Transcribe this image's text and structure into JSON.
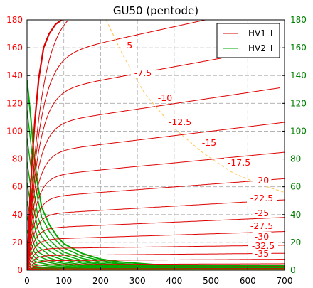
{
  "chart_data": {
    "type": "line",
    "title": "GU50 (pentode)",
    "xlim": [
      0,
      700
    ],
    "ylim_left": [
      0,
      180
    ],
    "ylim_right": [
      0,
      180
    ],
    "x_ticks": [
      0,
      100,
      200,
      300,
      400,
      500,
      600,
      700
    ],
    "y_ticks_left": [
      0,
      20,
      40,
      60,
      80,
      100,
      120,
      140,
      160,
      180
    ],
    "y_ticks_right": [
      0,
      20,
      40,
      60,
      80,
      100,
      120,
      140,
      160,
      180
    ],
    "grid": true,
    "legend_position": "top-right",
    "legend": [
      {
        "name": "HV1_I",
        "color": "#dd0000"
      },
      {
        "name": "HV2_I",
        "color": "#00aa00"
      }
    ],
    "colors": {
      "left_axis": "#ff0000",
      "right_axis": "#008000",
      "hv1": "#dd0000",
      "hv2": "#00aa00",
      "load_line": "#ffcc66",
      "grid": "#aaaaaa"
    },
    "hv1_curves": [
      {
        "label": "-5",
        "plateau": 180,
        "x_end": 450
      },
      {
        "label": "-7.5",
        "plateau": 152,
        "x_end": 500
      },
      {
        "label": "-10",
        "plateau": 127,
        "x_end": 580
      },
      {
        "label": "-12.5",
        "plateau": 104,
        "x_end": 690
      },
      {
        "label": "-15",
        "plateau": 84,
        "x_end": 700
      },
      {
        "label": "-17.5",
        "plateau": 67,
        "x_end": 700
      },
      {
        "label": "-20",
        "plateau": 52,
        "x_end": 700
      },
      {
        "label": "-22.5",
        "plateau": 40,
        "x_end": 700
      },
      {
        "label": "-25",
        "plateau": 30,
        "x_end": 700
      },
      {
        "label": "-27.5",
        "plateau": 22,
        "x_end": 700
      },
      {
        "label": "-30",
        "plateau": 15.5,
        "x_end": 700
      },
      {
        "label": "-32.5",
        "plateau": 10.5,
        "x_end": 700
      },
      {
        "label": "-35",
        "plateau": 6.8,
        "x_end": 700
      },
      {
        "label": "",
        "plateau": 4,
        "x_end": 700
      },
      {
        "label": "",
        "plateau": 2.2,
        "x_end": 700
      },
      {
        "label": "",
        "plateau": 1,
        "x_end": 700
      },
      {
        "label": "",
        "plateau": 0.3,
        "x_end": 700
      }
    ],
    "hv1_bold_curve": {
      "x": [
        0,
        3,
        8,
        14,
        22,
        32,
        45,
        60,
        78,
        95
      ],
      "y": [
        0,
        20,
        50,
        80,
        110,
        138,
        160,
        170,
        177,
        180
      ]
    },
    "hv2_curves": [
      {
        "start": 137,
        "knee_x": 45,
        "knee_y": 45,
        "x": [
          0,
          10,
          20,
          30,
          40,
          60,
          80,
          100,
          150,
          200,
          250,
          300,
          350
        ],
        "y": [
          137,
          110,
          80,
          60,
          45,
          33,
          25,
          19,
          12,
          8,
          6,
          5,
          4
        ]
      },
      {
        "start": 115,
        "knee_x": 40,
        "knee_y": 38,
        "x": [
          0,
          10,
          20,
          30,
          40,
          60,
          80,
          100,
          150,
          200,
          250,
          300,
          350
        ],
        "y": [
          115,
          92,
          67,
          50,
          38,
          28,
          21,
          16,
          10,
          7,
          5,
          4,
          3.4
        ]
      },
      {
        "start": 95,
        "knee_x": 35,
        "knee_y": 30,
        "x": [
          0,
          10,
          20,
          30,
          40,
          60,
          80,
          100,
          150,
          200,
          250,
          300,
          350
        ],
        "y": [
          95,
          75,
          54,
          38,
          30,
          22,
          17,
          13,
          8.5,
          6,
          4.5,
          3.5,
          3
        ]
      },
      {
        "start": 78,
        "knee_x": 30,
        "knee_y": 24,
        "x": [
          0,
          10,
          20,
          30,
          40,
          60,
          80,
          100,
          150,
          200,
          250,
          300,
          350
        ],
        "y": [
          78,
          60,
          42,
          29,
          24,
          18,
          14,
          11,
          7,
          5,
          3.8,
          3,
          2.5
        ]
      },
      {
        "start": 63,
        "knee_x": 28,
        "knee_y": 19,
        "x": [
          0,
          10,
          20,
          30,
          40,
          60,
          80,
          100,
          150,
          200,
          250,
          300,
          350
        ],
        "y": [
          63,
          47,
          32,
          22,
          19,
          14,
          11,
          9,
          6,
          4.3,
          3.2,
          2.6,
          2.2
        ]
      },
      {
        "start": 50,
        "knee_x": 25,
        "knee_y": 15,
        "x": [
          0,
          10,
          20,
          30,
          40,
          60,
          80,
          100,
          150,
          200,
          250,
          300,
          350
        ],
        "y": [
          50,
          36,
          24,
          17,
          15,
          11,
          9,
          7.4,
          5,
          3.6,
          2.7,
          2.2,
          1.9
        ]
      },
      {
        "start": 39,
        "knee_x": 22,
        "knee_y": 12,
        "x": [
          0,
          10,
          20,
          30,
          40,
          60,
          80,
          100,
          150,
          200,
          250,
          300,
          350
        ],
        "y": [
          39,
          27,
          18,
          13,
          11.5,
          8.8,
          7.2,
          6,
          4,
          3,
          2.3,
          1.9,
          1.6
        ]
      },
      {
        "start": 29,
        "knee_x": 20,
        "knee_y": 9,
        "x": [
          0,
          10,
          20,
          30,
          40,
          60,
          80,
          100,
          150,
          200,
          250,
          300,
          350
        ],
        "y": [
          29,
          20,
          13,
          10,
          9,
          7,
          5.8,
          4.9,
          3.3,
          2.5,
          1.9,
          1.6,
          1.4
        ]
      },
      {
        "start": 21,
        "knee_x": 18,
        "knee_y": 7,
        "x": [
          0,
          10,
          20,
          30,
          40,
          60,
          80,
          100,
          150,
          200,
          250,
          300,
          350
        ],
        "y": [
          21,
          14,
          9.5,
          7.5,
          7,
          5.5,
          4.6,
          3.9,
          2.7,
          2,
          1.6,
          1.3,
          1.1
        ]
      },
      {
        "start": 15,
        "knee_x": 15,
        "knee_y": 5,
        "x": [
          0,
          10,
          20,
          30,
          40,
          60,
          80,
          100,
          150,
          200,
          250,
          300,
          350
        ],
        "y": [
          15,
          10,
          6.8,
          5.5,
          5.1,
          4.1,
          3.5,
          3,
          2.1,
          1.6,
          1.3,
          1.1,
          0.9
        ]
      },
      {
        "start": 10,
        "knee_x": 12,
        "knee_y": 3.5,
        "x": [
          0,
          10,
          20,
          30,
          40,
          60,
          80,
          100,
          150,
          200,
          250,
          300,
          350
        ],
        "y": [
          10,
          6.7,
          4.6,
          3.9,
          3.6,
          3,
          2.6,
          2.2,
          1.6,
          1.2,
          1,
          0.85,
          0.7
        ]
      },
      {
        "start": 6,
        "knee_x": 10,
        "knee_y": 2.3,
        "x": [
          0,
          10,
          20,
          30,
          40,
          60,
          80,
          100,
          150,
          200,
          250,
          300,
          350
        ],
        "y": [
          6,
          4,
          2.8,
          2.5,
          2.3,
          2,
          1.7,
          1.5,
          1.1,
          0.85,
          0.7,
          0.6,
          0.5
        ]
      },
      {
        "start": 3.5,
        "knee_x": 8,
        "knee_y": 1.4,
        "x": [
          0,
          10,
          20,
          30,
          40,
          60,
          80,
          100,
          150,
          200,
          250,
          300,
          350
        ],
        "y": [
          3.5,
          2.3,
          1.7,
          1.5,
          1.4,
          1.2,
          1.05,
          0.95,
          0.7,
          0.55,
          0.45,
          0.4,
          0.35
        ]
      }
    ],
    "hv2_tail": {
      "x": [
        0,
        20,
        60,
        150,
        300,
        450,
        600,
        700
      ],
      "y": [
        0.5,
        0.8,
        1.2,
        1.6,
        2.0,
        2.3,
        2.5,
        2.6
      ]
    },
    "load_line": {
      "x": [
        215,
        260,
        320,
        400,
        480,
        560,
        640,
        700
      ],
      "y": [
        180,
        155,
        127,
        102,
        84,
        70,
        61,
        56
      ]
    }
  }
}
